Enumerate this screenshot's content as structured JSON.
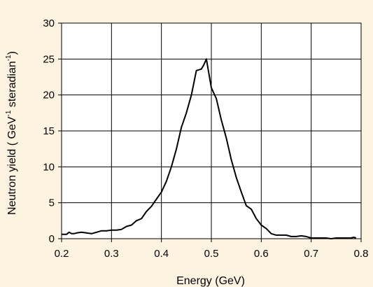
{
  "chart_data": {
    "type": "line",
    "title": "",
    "xlabel": "Energy  (GeV)",
    "ylabel": {
      "main": "Neutron yield ( GeV",
      "sup1": "-1",
      "mid": " steradian",
      "sup2": "-1",
      "end": ")"
    },
    "xlim": [
      0.2,
      0.8
    ],
    "ylim": [
      0,
      30
    ],
    "x_ticks": [
      "0.2",
      "0.3",
      "0.4",
      "0.5",
      "0.6",
      "0.7",
      "0.8"
    ],
    "y_ticks": [
      "0",
      "5",
      "10",
      "15",
      "20",
      "25",
      "30"
    ],
    "grid": true,
    "legend": "none",
    "line_color": "#000000",
    "plot_background": "#ffffff",
    "figure_background": "#fdf3e1",
    "series": [
      {
        "x": [
          0.2,
          0.21,
          0.215,
          0.22,
          0.225,
          0.23,
          0.24,
          0.25,
          0.26,
          0.27,
          0.28,
          0.29,
          0.3,
          0.305,
          0.31,
          0.32,
          0.33,
          0.34,
          0.35,
          0.36,
          0.37,
          0.38,
          0.39,
          0.4,
          0.41,
          0.42,
          0.43,
          0.44,
          0.45,
          0.46,
          0.47,
          0.48,
          0.485,
          0.49,
          0.5,
          0.51,
          0.52,
          0.53,
          0.54,
          0.55,
          0.56,
          0.57,
          0.58,
          0.59,
          0.6,
          0.61,
          0.62,
          0.63,
          0.64,
          0.65,
          0.66,
          0.67,
          0.68,
          0.69,
          0.7,
          0.71,
          0.72,
          0.73,
          0.74,
          0.75,
          0.76,
          0.77,
          0.78,
          0.785,
          0.79
        ],
        "y": [
          0.6,
          0.6,
          0.9,
          0.7,
          0.7,
          0.8,
          0.9,
          0.8,
          0.7,
          0.9,
          1.1,
          1.1,
          1.2,
          1.2,
          1.2,
          1.3,
          1.7,
          1.9,
          2.5,
          2.8,
          3.8,
          4.5,
          5.5,
          6.5,
          8.0,
          10.0,
          12.5,
          15.5,
          17.5,
          20.0,
          23.4,
          23.6,
          24.2,
          25.0,
          21.0,
          19.5,
          16.5,
          14.0,
          11.0,
          8.5,
          6.5,
          4.6,
          4.1,
          2.8,
          1.9,
          1.4,
          0.7,
          0.5,
          0.5,
          0.5,
          0.3,
          0.3,
          0.4,
          0.3,
          0.1,
          0.1,
          0.1,
          0.1,
          0.0,
          0.1,
          0.1,
          0.1,
          0.1,
          0.2,
          0.1
        ]
      }
    ]
  }
}
